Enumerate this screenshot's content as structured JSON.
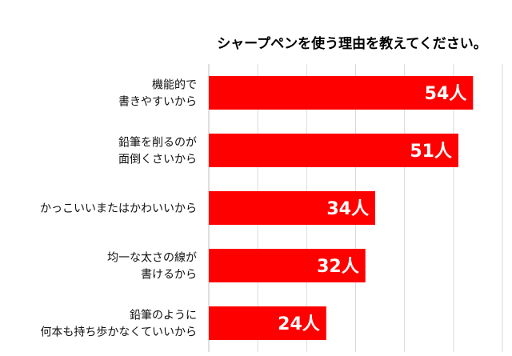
{
  "chart_data": {
    "type": "bar",
    "orientation": "horizontal",
    "title": "シャープペンを使う理由を教えてください。",
    "categories": [
      [
        "機能的で",
        "書きやすいから"
      ],
      [
        "鉛筆を削るのが",
        "面倒くさいから"
      ],
      [
        "かっこいいまたはかわいいから"
      ],
      [
        "均一な太さの線が",
        "書けるから"
      ],
      [
        "鉛筆のように",
        "何本も持ち歩かなくていいから"
      ]
    ],
    "values": [
      54,
      51,
      34,
      32,
      24
    ],
    "data_labels": [
      "54人",
      "51人",
      "34人",
      "32人",
      "24人"
    ],
    "unit": "人",
    "xlim": [
      0,
      60
    ],
    "bar_color": "#ff0000",
    "grid": true,
    "legend": "none"
  }
}
